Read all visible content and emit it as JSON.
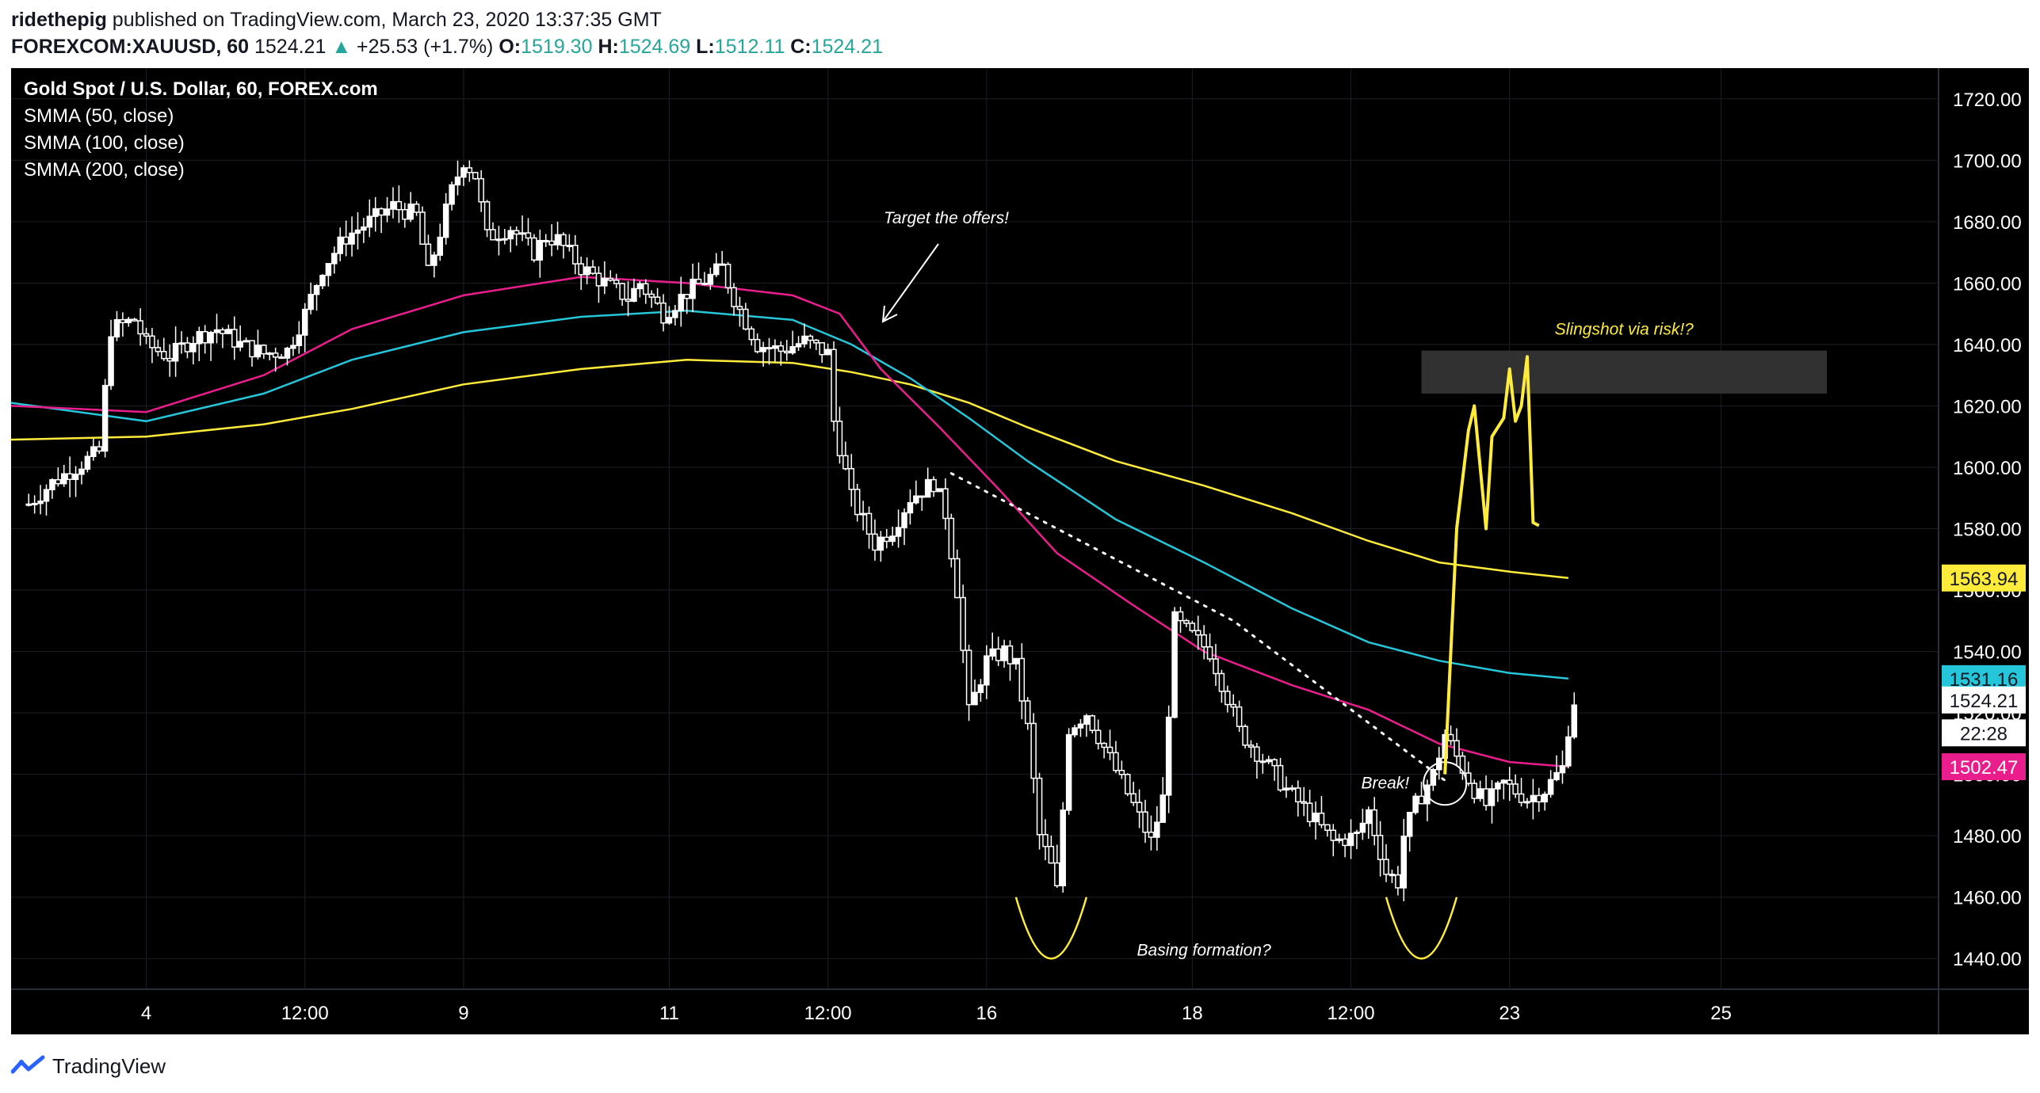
{
  "header": {
    "author": "ridethepig",
    "published_text": "published on TradingView.com, March 23, 2020 13:37:35 GMT",
    "symbol": "FOREXCOM:XAUUSD, 60",
    "last": "1524.21",
    "change_arrow": "▲",
    "change": "+25.53 (+1.7%)",
    "open_label": "O:",
    "open": "1519.30",
    "high_label": "H:",
    "high": "1524.69",
    "low_label": "L:",
    "low": "1512.11",
    "close_label": "C:",
    "close": "1524.21"
  },
  "legend": {
    "title": "Gold Spot / U.S. Dollar, 60, FOREX.com",
    "items": [
      "SMMA (50, close)",
      "SMMA (100, close)",
      "SMMA (200, close)"
    ]
  },
  "footer": {
    "brand": "TradingView",
    "logo_icon": "tradingview-logo-icon"
  },
  "colors": {
    "smma50": "#e91e8c",
    "smma100": "#26c6da",
    "smma200": "#ffeb3b",
    "candles": "#ffffff",
    "projection": "#ffeb3b",
    "background": "#000000"
  },
  "chart_data": {
    "type": "line",
    "xlabel": "",
    "ylabel": "",
    "ylim": [
      1430,
      1730
    ],
    "xlim": [
      -3,
      325
    ],
    "y_ticks": [
      1440,
      1460,
      1480,
      1500,
      1520,
      1540,
      1560,
      1580,
      1600,
      1620,
      1640,
      1660,
      1680,
      1700,
      1720
    ],
    "x_ticks": [
      {
        "x": 20,
        "label": "4"
      },
      {
        "x": 47,
        "label": "12:00"
      },
      {
        "x": 74,
        "label": "9"
      },
      {
        "x": 109,
        "label": "11"
      },
      {
        "x": 136,
        "label": "12:00"
      },
      {
        "x": 163,
        "label": "16"
      },
      {
        "x": 198,
        "label": "18"
      },
      {
        "x": 225,
        "label": "12:00"
      },
      {
        "x": 252,
        "label": "23"
      },
      {
        "x": 288,
        "label": "25"
      }
    ],
    "price_labels": [
      {
        "value": 1563.94,
        "text": "1563.94",
        "bg": "#ffeb3b",
        "fg": "#131722"
      },
      {
        "value": 1531.16,
        "text": "1531.16",
        "bg": "#26c6da",
        "fg": "#131722"
      },
      {
        "value": 1524.21,
        "text": "1524.21",
        "bg": "#ffffff",
        "fg": "#131722"
      },
      {
        "value": 1513.5,
        "text": "22:28",
        "bg": "#ffffff",
        "fg": "#131722"
      },
      {
        "value": 1502.47,
        "text": "1502.47",
        "bg": "#e91e8c",
        "fg": "#ffffff"
      }
    ],
    "price_key_points": [
      [
        0,
        1588
      ],
      [
        4,
        1595
      ],
      [
        8,
        1600
      ],
      [
        12,
        1605
      ],
      [
        14,
        1645
      ],
      [
        18,
        1648
      ],
      [
        20,
        1640
      ],
      [
        24,
        1636
      ],
      [
        28,
        1642
      ],
      [
        32,
        1645
      ],
      [
        36,
        1640
      ],
      [
        40,
        1637
      ],
      [
        44,
        1638
      ],
      [
        47,
        1650
      ],
      [
        50,
        1665
      ],
      [
        54,
        1675
      ],
      [
        58,
        1680
      ],
      [
        62,
        1685
      ],
      [
        66,
        1682
      ],
      [
        68,
        1663
      ],
      [
        72,
        1690
      ],
      [
        74,
        1700
      ],
      [
        76,
        1695
      ],
      [
        78,
        1675
      ],
      [
        82,
        1678
      ],
      [
        86,
        1670
      ],
      [
        88,
        1675
      ],
      [
        90,
        1674
      ],
      [
        94,
        1665
      ],
      [
        98,
        1660
      ],
      [
        102,
        1655
      ],
      [
        104,
        1660
      ],
      [
        108,
        1650
      ],
      [
        112,
        1657
      ],
      [
        116,
        1662
      ],
      [
        118,
        1665
      ],
      [
        120,
        1655
      ],
      [
        124,
        1640
      ],
      [
        128,
        1638
      ],
      [
        132,
        1641
      ],
      [
        136,
        1637
      ],
      [
        137,
        1615
      ],
      [
        140,
        1590
      ],
      [
        144,
        1575
      ],
      [
        147,
        1580
      ],
      [
        150,
        1590
      ],
      [
        154,
        1595
      ],
      [
        156,
        1585
      ],
      [
        158,
        1560
      ],
      [
        160,
        1520
      ],
      [
        163,
        1537
      ],
      [
        166,
        1540
      ],
      [
        168,
        1535
      ],
      [
        170,
        1515
      ],
      [
        172,
        1480
      ],
      [
        174,
        1470
      ],
      [
        175,
        1462
      ],
      [
        177,
        1515
      ],
      [
        180,
        1520
      ],
      [
        184,
        1505
      ],
      [
        188,
        1490
      ],
      [
        191,
        1478
      ],
      [
        193,
        1492
      ],
      [
        195,
        1550
      ],
      [
        198,
        1545
      ],
      [
        201,
        1540
      ],
      [
        204,
        1525
      ],
      [
        206,
        1514
      ],
      [
        210,
        1505
      ],
      [
        214,
        1495
      ],
      [
        218,
        1487
      ],
      [
        222,
        1478
      ],
      [
        226,
        1480
      ],
      [
        228,
        1488
      ],
      [
        231,
        1468
      ],
      [
        233,
        1465
      ],
      [
        234,
        1480
      ],
      [
        236,
        1490
      ],
      [
        239,
        1500
      ],
      [
        241,
        1513
      ],
      [
        244,
        1502
      ],
      [
        246,
        1495
      ],
      [
        248,
        1490
      ],
      [
        251,
        1497
      ],
      [
        255,
        1492
      ],
      [
        258,
        1495
      ],
      [
        261,
        1502
      ],
      [
        262,
        1515
      ],
      [
        263,
        1524
      ]
    ],
    "smma50": [
      [
        -3,
        1620
      ],
      [
        20,
        1618
      ],
      [
        40,
        1630
      ],
      [
        55,
        1645
      ],
      [
        74,
        1656
      ],
      [
        94,
        1662
      ],
      [
        112,
        1660
      ],
      [
        130,
        1656
      ],
      [
        138,
        1650
      ],
      [
        145,
        1632
      ],
      [
        155,
        1613
      ],
      [
        165,
        1593
      ],
      [
        175,
        1572
      ],
      [
        188,
        1555
      ],
      [
        200,
        1540
      ],
      [
        215,
        1529
      ],
      [
        228,
        1521
      ],
      [
        240,
        1510
      ],
      [
        252,
        1504
      ],
      [
        262,
        1502.47
      ]
    ],
    "smma100": [
      [
        -3,
        1621
      ],
      [
        20,
        1615
      ],
      [
        40,
        1624
      ],
      [
        55,
        1635
      ],
      [
        74,
        1644
      ],
      [
        94,
        1649
      ],
      [
        112,
        1651
      ],
      [
        130,
        1648
      ],
      [
        140,
        1640
      ],
      [
        150,
        1629
      ],
      [
        160,
        1616
      ],
      [
        170,
        1602
      ],
      [
        185,
        1583
      ],
      [
        200,
        1569
      ],
      [
        215,
        1554
      ],
      [
        228,
        1543
      ],
      [
        240,
        1537
      ],
      [
        252,
        1533
      ],
      [
        262,
        1531.16
      ]
    ],
    "smma200": [
      [
        -3,
        1609
      ],
      [
        20,
        1610
      ],
      [
        40,
        1614
      ],
      [
        55,
        1619
      ],
      [
        74,
        1627
      ],
      [
        94,
        1632
      ],
      [
        112,
        1635
      ],
      [
        130,
        1634
      ],
      [
        140,
        1631
      ],
      [
        150,
        1627
      ],
      [
        160,
        1621
      ],
      [
        170,
        1613
      ],
      [
        185,
        1602
      ],
      [
        200,
        1594
      ],
      [
        215,
        1585
      ],
      [
        228,
        1576
      ],
      [
        240,
        1569
      ],
      [
        252,
        1566
      ],
      [
        262,
        1563.94
      ]
    ]
  },
  "annotations": {
    "target_text": "Target the offers!",
    "slingshot_text": "Slingshot via risk!?",
    "break_text": "Break!",
    "basing_text": "Basing formation?",
    "zone": {
      "x0": 237,
      "x1": 306,
      "y0": 1624,
      "y1": 1638
    },
    "projection": [
      [
        241,
        1500
      ],
      [
        243,
        1580
      ],
      [
        245,
        1612
      ],
      [
        246,
        1620
      ],
      [
        248,
        1580
      ],
      [
        249,
        1610
      ],
      [
        251,
        1616
      ],
      [
        252,
        1632
      ],
      [
        253,
        1615
      ],
      [
        254,
        1620
      ],
      [
        255,
        1636
      ],
      [
        256,
        1582
      ],
      [
        257,
        1581
      ]
    ],
    "trendline": [
      [
        157,
        1598
      ],
      [
        205,
        1550
      ],
      [
        241,
        1498
      ]
    ],
    "break_circle": {
      "x": 241,
      "y": 1497
    }
  }
}
